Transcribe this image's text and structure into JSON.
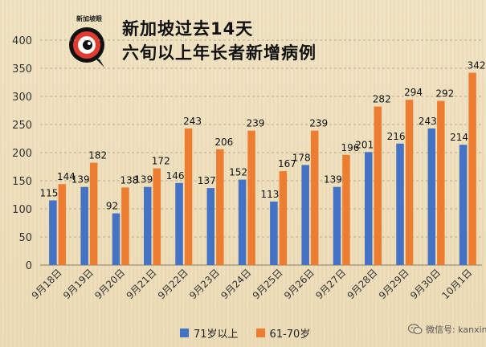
{
  "title": {
    "line1": "新加坡过去14天",
    "line2": "六旬以上年长者新增病例"
  },
  "logo": {
    "text": "新加坡眼",
    "icon": "magnifier-eye-logo"
  },
  "watermark": {
    "text": "微信号: kanxinjiapo",
    "icon": "wechat-icon"
  },
  "colors": {
    "series1": "#4472c4",
    "series2": "#ed7d31",
    "grid": "#a89a80",
    "axis_text": "#333333"
  },
  "chart_data": {
    "type": "bar",
    "title": "新加坡过去14天 六旬以上年长者新增病例",
    "xlabel": "",
    "ylabel": "",
    "ylim": [
      0,
      400
    ],
    "yticks": [
      0,
      50,
      100,
      150,
      200,
      250,
      300,
      350,
      400
    ],
    "grid": true,
    "legend_position": "bottom",
    "categories": [
      "9月18日",
      "9月19日",
      "9月20日",
      "9月21日",
      "9月22日",
      "9月23日",
      "9月24日",
      "9月25日",
      "9月26日",
      "9月27日",
      "9月28日",
      "9月29日",
      "9月30日",
      "10月1日"
    ],
    "series": [
      {
        "name": "71岁以上",
        "values": [
          115,
          139,
          92,
          139,
          146,
          137,
          152,
          113,
          178,
          139,
          201,
          216,
          243,
          214
        ]
      },
      {
        "name": "61-70岁",
        "values": [
          144,
          182,
          138,
          172,
          243,
          206,
          239,
          167,
          239,
          196,
          282,
          294,
          292,
          342
        ]
      }
    ]
  }
}
